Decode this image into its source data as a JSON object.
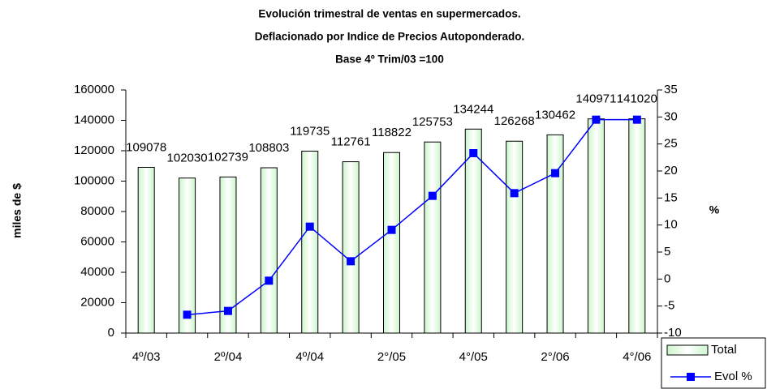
{
  "chart_data": {
    "type": "bar_line",
    "title": [
      "Evolución trimestral de ventas en supermercados.",
      "Deflacionado por Indice de Precios Autoponderado.",
      "Base 4º Trim/03 =100"
    ],
    "y_label": "miles de $",
    "y2_label": "%",
    "categories": [
      "4º/03",
      null,
      "2º/04",
      null,
      "4º/04",
      null,
      "2°/05",
      null,
      "4°/05",
      null,
      "2°/06",
      null,
      "4°/06"
    ],
    "series": [
      {
        "name": "Total",
        "type": "bar",
        "color": "#ccf5cc",
        "values": [
          109078,
          102030,
          102739,
          108803,
          119735,
          112761,
          118822,
          125753,
          134244,
          126268,
          130462,
          140971,
          141020
        ]
      },
      {
        "name": "Evol %",
        "type": "line",
        "axis": "y2",
        "color": "#0000ff",
        "values": [
          null,
          -6.6,
          -5.9,
          -0.3,
          9.7,
          3.3,
          9.1,
          15.4,
          23.3,
          15.9,
          19.6,
          29.5,
          29.5
        ]
      }
    ],
    "ylim": [
      0,
      160000
    ],
    "yticks": [
      0,
      20000,
      40000,
      60000,
      80000,
      100000,
      120000,
      140000,
      160000
    ],
    "y2lim": [
      -10,
      35
    ],
    "y2ticks": [
      -10,
      -5,
      0,
      5,
      10,
      15,
      20,
      25,
      30,
      35
    ],
    "legend": "bottom-right"
  }
}
